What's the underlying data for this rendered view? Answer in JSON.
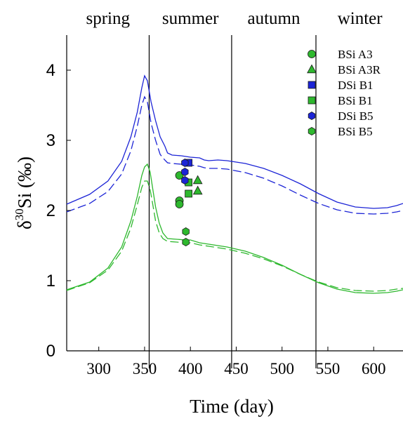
{
  "chart_data": {
    "type": "line",
    "xlabel": "Time (day)",
    "ylabel_main": "δ",
    "ylabel_sup": "30",
    "ylabel_rest": "Si (‰)",
    "xlim": [
      265,
      632
    ],
    "ylim": [
      0,
      4.5
    ],
    "xticks": [
      300,
      350,
      400,
      450,
      500,
      550,
      600
    ],
    "yticks": [
      0,
      1,
      2,
      3,
      4
    ],
    "xtick_labels": [
      "300",
      "350",
      "400",
      "450",
      "500",
      "550",
      "600"
    ],
    "ytick_labels": [
      "0",
      "1",
      "2",
      "3",
      "4"
    ],
    "grid": false,
    "season_dividers": [
      355,
      445,
      537
    ],
    "seasons": [
      {
        "label": "spring",
        "center": 310
      },
      {
        "label": "summer",
        "center": 400
      },
      {
        "label": "autumn",
        "center": 491
      },
      {
        "label": "winter",
        "center": 585
      }
    ],
    "legend_position": "top-right",
    "lines": [
      {
        "color": "#1c24d6",
        "dash": "solid",
        "x": [
          265,
          290,
          310,
          325,
          335,
          342,
          347,
          350,
          353,
          357,
          362,
          367,
          372,
          375,
          380,
          390,
          400,
          410,
          415,
          420,
          430,
          440,
          460,
          480,
          500,
          520,
          540,
          560,
          580,
          600,
          615,
          625,
          632
        ],
        "y": [
          2.09,
          2.23,
          2.42,
          2.7,
          3.05,
          3.4,
          3.75,
          3.92,
          3.85,
          3.55,
          3.28,
          3.05,
          2.92,
          2.82,
          2.79,
          2.78,
          2.76,
          2.75,
          2.72,
          2.71,
          2.72,
          2.71,
          2.67,
          2.6,
          2.5,
          2.38,
          2.24,
          2.12,
          2.05,
          2.03,
          2.04,
          2.07,
          2.1
        ]
      },
      {
        "color": "#1c24d6",
        "dash": "dashed",
        "x": [
          265,
          290,
          310,
          325,
          335,
          342,
          347,
          350,
          353,
          357,
          362,
          367,
          372,
          375,
          380,
          390,
          400,
          410,
          415,
          420,
          430,
          440,
          460,
          480,
          500,
          520,
          540,
          560,
          580,
          600,
          615,
          625,
          632
        ],
        "y": [
          1.98,
          2.1,
          2.27,
          2.52,
          2.85,
          3.2,
          3.5,
          3.62,
          3.55,
          3.25,
          3.0,
          2.8,
          2.72,
          2.68,
          2.67,
          2.66,
          2.65,
          2.63,
          2.61,
          2.6,
          2.6,
          2.59,
          2.54,
          2.46,
          2.35,
          2.22,
          2.1,
          2.01,
          1.96,
          1.95,
          1.96,
          1.98,
          2.0
        ]
      },
      {
        "color": "#2eb82e",
        "dash": "solid",
        "x": [
          265,
          290,
          310,
          325,
          335,
          342,
          347,
          350,
          353,
          356,
          359,
          362,
          366,
          370,
          375,
          385,
          395,
          400,
          410,
          420,
          430,
          440,
          460,
          480,
          500,
          520,
          540,
          560,
          580,
          600,
          615,
          625,
          632
        ],
        "y": [
          0.87,
          0.98,
          1.18,
          1.48,
          1.85,
          2.2,
          2.5,
          2.62,
          2.66,
          2.55,
          2.3,
          2.05,
          1.82,
          1.68,
          1.6,
          1.59,
          1.58,
          1.58,
          1.54,
          1.52,
          1.5,
          1.48,
          1.42,
          1.33,
          1.22,
          1.09,
          0.97,
          0.88,
          0.83,
          0.82,
          0.83,
          0.85,
          0.87
        ]
      },
      {
        "color": "#2eb82e",
        "dash": "dashed",
        "x": [
          265,
          290,
          310,
          325,
          335,
          342,
          347,
          350,
          353,
          356,
          359,
          362,
          366,
          370,
          375,
          385,
          395,
          400,
          410,
          420,
          430,
          440,
          460,
          480,
          500,
          520,
          540,
          560,
          580,
          600,
          615,
          625,
          632
        ],
        "y": [
          0.86,
          0.97,
          1.15,
          1.42,
          1.75,
          2.08,
          2.33,
          2.42,
          2.42,
          2.3,
          2.08,
          1.85,
          1.68,
          1.6,
          1.56,
          1.55,
          1.54,
          1.54,
          1.51,
          1.49,
          1.47,
          1.45,
          1.39,
          1.31,
          1.21,
          1.09,
          0.98,
          0.9,
          0.86,
          0.85,
          0.86,
          0.88,
          0.89
        ]
      }
    ],
    "series": [
      {
        "name": "BSi A3",
        "marker": "circle",
        "color": "#2eb82e",
        "points": [
          [
            388,
            2.5
          ],
          [
            388,
            2.14
          ],
          [
            388,
            2.09
          ]
        ]
      },
      {
        "name": "BSi A3R",
        "marker": "triangle",
        "color": "#2eb82e",
        "points": [
          [
            408,
            2.43
          ],
          [
            408,
            2.28
          ]
        ]
      },
      {
        "name": "DSi B1",
        "marker": "square",
        "color": "#1c24d6",
        "points": [
          [
            398,
            2.68
          ]
        ]
      },
      {
        "name": "BSi B1",
        "marker": "square",
        "color": "#2eb82e",
        "points": [
          [
            398,
            2.4
          ],
          [
            398,
            2.24
          ]
        ]
      },
      {
        "name": "DSi B5",
        "marker": "hexagon",
        "color": "#1c24d6",
        "points": [
          [
            394,
            2.68
          ],
          [
            394,
            2.55
          ],
          [
            394,
            2.43
          ]
        ]
      },
      {
        "name": "BSi B5",
        "marker": "hexagon",
        "color": "#2eb82e",
        "points": [
          [
            395,
            1.7
          ],
          [
            395,
            1.55
          ]
        ]
      }
    ]
  }
}
